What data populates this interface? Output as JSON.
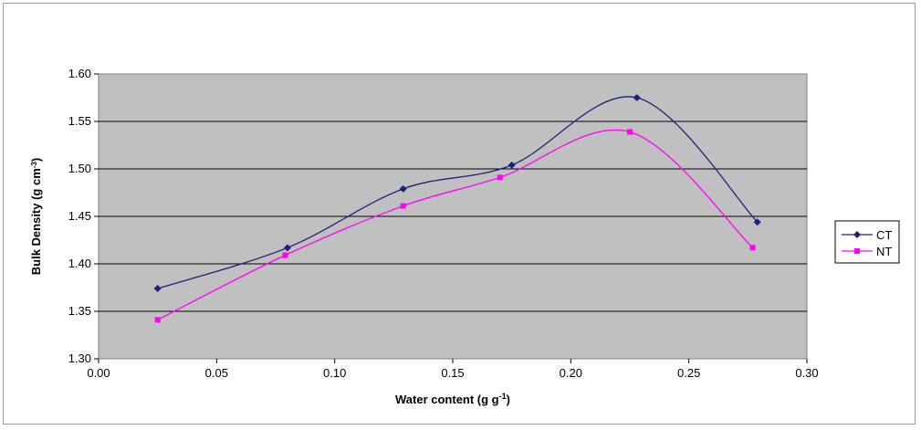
{
  "chart_data": {
    "type": "line",
    "title": "",
    "xlabel_main": "Water content (g g",
    "xlabel_sup": "-1",
    "xlabel_end": ")",
    "ylabel_main": "Bulk Density (g cm",
    "ylabel_sup": "-3",
    "ylabel_end": ")",
    "xlim": [
      0.0,
      0.3
    ],
    "ylim": [
      1.3,
      1.6
    ],
    "xticks": [
      0.0,
      0.05,
      0.1,
      0.15,
      0.2,
      0.25,
      0.3
    ],
    "xtick_labels": [
      "0.00",
      "0.05",
      "0.10",
      "0.15",
      "0.20",
      "0.25",
      "0.30"
    ],
    "yticks": [
      1.3,
      1.35,
      1.4,
      1.45,
      1.5,
      1.55,
      1.6
    ],
    "ytick_labels": [
      "1.30",
      "1.35",
      "1.40",
      "1.45",
      "1.50",
      "1.55",
      "1.60"
    ],
    "grid": "horizontal",
    "legend_position": "right",
    "series": [
      {
        "name": "CT",
        "color": "#1f1f7a",
        "marker": "diamond",
        "x": [
          0.025,
          0.08,
          0.129,
          0.175,
          0.228,
          0.279
        ],
        "y": [
          1.374,
          1.417,
          1.479,
          1.504,
          1.575,
          1.444
        ]
      },
      {
        "name": "NT",
        "color": "#ff00ff",
        "marker": "square",
        "x": [
          0.025,
          0.079,
          0.129,
          0.17,
          0.225,
          0.277
        ],
        "y": [
          1.341,
          1.409,
          1.461,
          1.491,
          1.539,
          1.417
        ]
      }
    ]
  }
}
